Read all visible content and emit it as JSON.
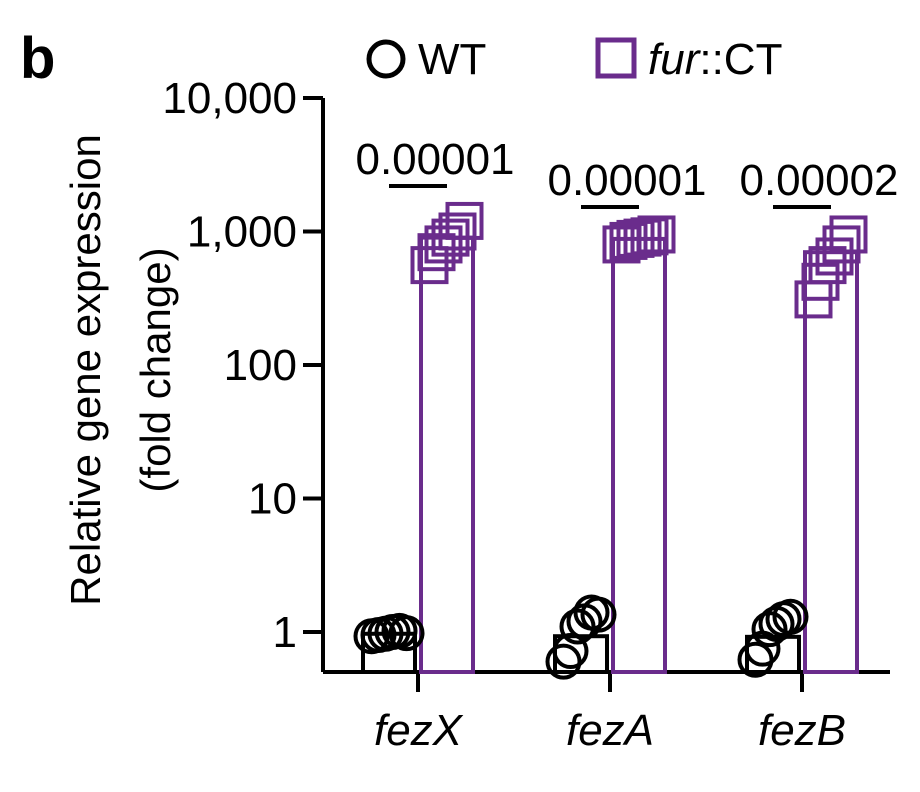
{
  "panel_label": "b",
  "legend": {
    "wt_label": "WT",
    "mut_label_italic": "fur",
    "mut_label_rest": "::CT"
  },
  "colors": {
    "wt": "#000000",
    "mut": "#6a2c8c"
  },
  "chart_data": {
    "type": "bar",
    "yscale": "log",
    "ylim": [
      0.5,
      10000
    ],
    "ytick_values": [
      1,
      10,
      100,
      1000,
      10000
    ],
    "ytick_labels": [
      "1",
      "10",
      "100",
      "1,000",
      "10,000"
    ],
    "ylabel_line1": "Relative gene expression",
    "ylabel_line2": "(fold change)",
    "categories": [
      "fezX",
      "fezA",
      "fezB"
    ],
    "series": [
      {
        "name": "WT",
        "values": [
          0.97,
          0.93,
          0.92
        ],
        "points": [
          [
            0.93,
            0.95,
            0.97,
            1.0,
            1.02,
            0.98
          ],
          [
            0.6,
            0.72,
            1.1,
            1.2,
            1.4,
            1.35
          ],
          [
            0.62,
            0.75,
            1.05,
            1.15,
            1.25,
            1.3
          ]
        ]
      },
      {
        "name": "fur::CT",
        "values": [
          900,
          880,
          700
        ],
        "points": [
          [
            560,
            700,
            800,
            900,
            1000,
            1200
          ],
          [
            800,
            850,
            880,
            900,
            920,
            950
          ],
          [
            310,
            420,
            560,
            650,
            800,
            950
          ]
        ]
      }
    ],
    "pvalues": [
      "0.00001",
      "0.00001",
      "0.00002"
    ]
  }
}
